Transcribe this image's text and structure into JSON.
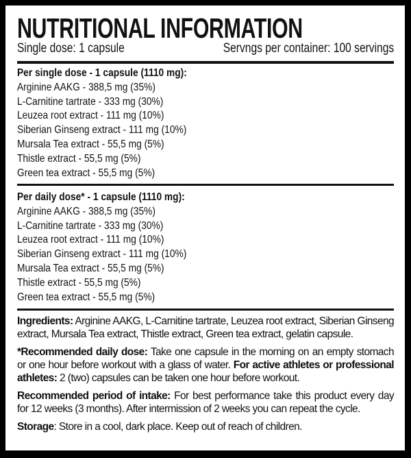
{
  "title": "NUTRITIONAL INFORMATION",
  "single_dose": "Single dose: 1 capsule",
  "servings": "Servngs per container: 100 servings",
  "sections": [
    {
      "heading": "Per single dose - 1 capsule (1110 mg):",
      "items": [
        "Arginine AAKG - 388,5 mg (35%)",
        "L-Carnitine tartrate - 333 mg (30%)",
        "Leuzea root extract - 111 mg (10%)",
        "Siberian Ginseng extract - 111 mg (10%)",
        "Mursala Tea extract - 55,5 mg (5%)",
        "Thistle extract - 55,5 mg (5%)",
        "Green tea extract - 55,5 mg (5%)"
      ]
    },
    {
      "heading": "Per daily dose* - 1 capsule (1110 mg):",
      "items": [
        "Arginine AAKG - 388,5 mg (35%)",
        "L-Carnitine tartrate - 333 mg (30%)",
        "Leuzea root extract - 111 mg (10%)",
        "Siberian Ginseng extract - 111 mg (10%)",
        "Mursala Tea extract - 55,5 mg (5%)",
        "Thistle extract - 55,5 mg (5%)",
        "Green tea extract - 55,5 mg (5%)"
      ]
    }
  ],
  "ingredients": {
    "label": "Ingredients:",
    "text": " Arginine AAKG, L-Carnitine tartrate, Leuzea root extract, Siberian Ginseng extract, Mursala Tea extract, Thistle extract, Green tea extract, gelatin capsule."
  },
  "recommended_dose": {
    "label": "*Recommended daily dose:",
    "text": " Take one capsule in the morning on an empty stomach or one hour before workout with a glass of water. ",
    "label2": "For active athletes or professional athletes:",
    "text2": " 2 (two) capsules can be taken one hour before workout."
  },
  "period": {
    "label": "Recommended period of intake:",
    "text": " For best performance take this product every day for 12 weeks (3 months). After intermission of 2 weeks you can repeat the cycle."
  },
  "storage": {
    "label": "Storage",
    "text": ": Store in a cool, dark place. Keep out of reach of children."
  }
}
